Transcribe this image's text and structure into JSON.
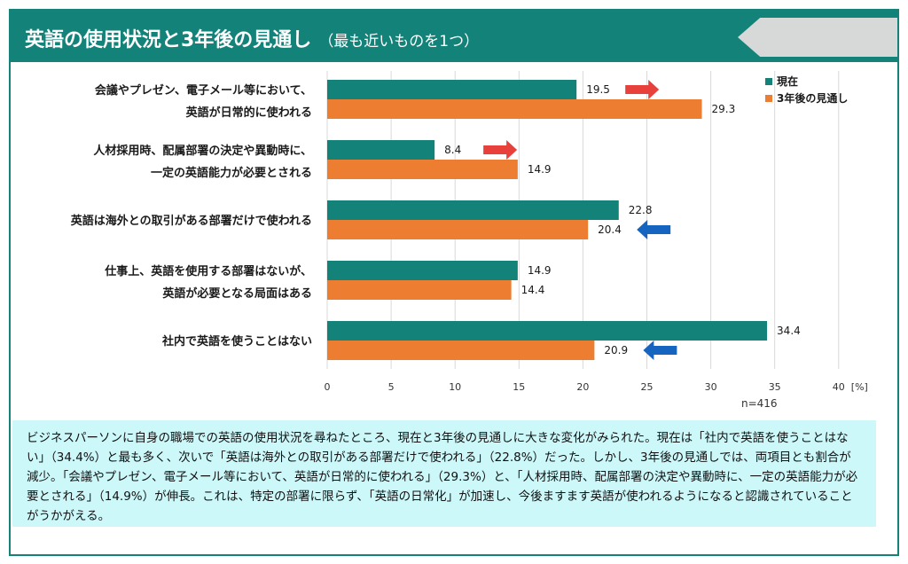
{
  "header": {
    "title": "英語の使用状況と3年後の見通し",
    "note": "（最も近いものを1つ）"
  },
  "colors": {
    "current": "#138279",
    "future": "#ED7D31",
    "arrow_up": "#E8413C",
    "arrow_down": "#1565C0",
    "header_bg": "#138279"
  },
  "chart_data": {
    "type": "bar",
    "orientation": "horizontal",
    "categories": [
      [
        "会議やプレゼン、電子メール等において、",
        "英語が日常的に使われる"
      ],
      [
        "人材採用時、配属部署の決定や異動時に、",
        "一定の英語能力が必要とされる"
      ],
      [
        "英語は海外との取引がある部署だけで使われる"
      ],
      [
        "仕事上、英語を使用する部署はないが、",
        "英語が必要となる局面はある"
      ],
      [
        "社内で英語を使うことはない"
      ]
    ],
    "series": [
      {
        "name": "現在",
        "values": [
          19.5,
          8.4,
          22.8,
          14.9,
          34.4
        ]
      },
      {
        "name": "3年後の見通し",
        "values": [
          29.3,
          14.9,
          20.4,
          14.4,
          20.9
        ]
      }
    ],
    "trend_arrows": [
      "up",
      "up",
      "down",
      null,
      "down"
    ],
    "xlim": [
      0,
      40
    ],
    "xticks": [
      0,
      5,
      10,
      15,
      20,
      25,
      30,
      35,
      40
    ],
    "x_unit": "[%]",
    "legend_position": "top-right",
    "grid": "vertical"
  },
  "sample_note": "n=416",
  "summary": "ビジネスパーソンに自身の職場での英語の使用状況を尋ねたところ、現在と3年後の見通しに大きな変化がみられた。現在は「社内で英語を使うことはない」（34.4%）と最も多く、次いで「英語は海外との取引がある部署だけで使われる」（22.8%）だった。しかし、3年後の見通しでは、両項目とも割合が減少。「会議やプレゼン、電子メール等において、英語が日常的に使われる」（29.3%）と、「人材採用時、配属部署の決定や異動時に、一定の英語能力が必要とされる」（14.9%）が伸長。これは、特定の部署に限らず、「英語の日常化」が加速し、今後ますます英語が使われるようになると認識されていることがうかがえる。"
}
